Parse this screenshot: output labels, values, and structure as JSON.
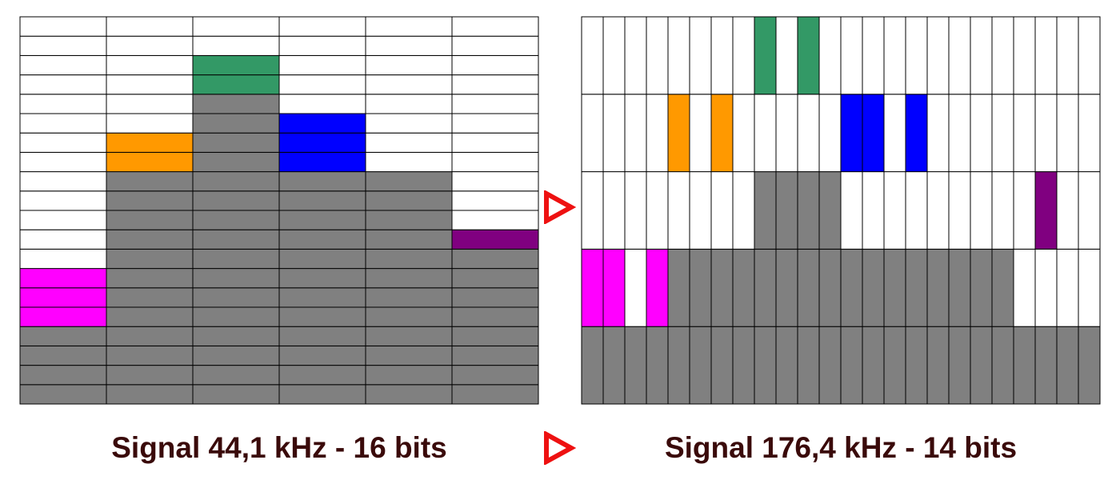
{
  "colors": {
    "background": "#ffffff",
    "grid_line": "#000000",
    "filled": "#808080",
    "arrow": "#ee1111",
    "caption": "#3a0a0a"
  },
  "arrow_icon": "triangle-right-outline-red",
  "left_grid": {
    "caption": "Signal 44,1 kHz - 16 bits",
    "columns": 6,
    "rows": 20,
    "gray_levels": [
      4,
      12,
      16,
      12,
      12,
      8
    ],
    "highlights": [
      {
        "column": 0,
        "from": 4,
        "to": 7,
        "color": "#ff00ff"
      },
      {
        "column": 1,
        "from": 12,
        "to": 14,
        "color": "#ff9900"
      },
      {
        "column": 2,
        "from": 16,
        "to": 18,
        "color": "#339966"
      },
      {
        "column": 3,
        "from": 12,
        "to": 15,
        "color": "#0000ff"
      },
      {
        "column": 5,
        "from": 8,
        "to": 9,
        "color": "#800080"
      }
    ]
  },
  "right_grid": {
    "caption": "Signal 176,4 kHz - 14 bits",
    "columns": 24,
    "rows": 5,
    "gray_levels": [
      1,
      1,
      1,
      1,
      2,
      2,
      2,
      2,
      3,
      3,
      3,
      3,
      2,
      2,
      2,
      2,
      2,
      2,
      2,
      2,
      1,
      1,
      1,
      1
    ],
    "highlights": [
      {
        "column": 0,
        "from": 1,
        "to": 2,
        "color": "#ff00ff"
      },
      {
        "column": 1,
        "from": 1,
        "to": 2,
        "color": "#ff00ff"
      },
      {
        "column": 3,
        "from": 1,
        "to": 2,
        "color": "#ff00ff"
      },
      {
        "column": 4,
        "from": 3,
        "to": 4,
        "color": "#ff9900"
      },
      {
        "column": 6,
        "from": 3,
        "to": 4,
        "color": "#ff9900"
      },
      {
        "column": 8,
        "from": 4,
        "to": 5,
        "color": "#339966"
      },
      {
        "column": 10,
        "from": 4,
        "to": 5,
        "color": "#339966"
      },
      {
        "column": 12,
        "from": 3,
        "to": 4,
        "color": "#0000ff"
      },
      {
        "column": 13,
        "from": 3,
        "to": 4,
        "color": "#0000ff"
      },
      {
        "column": 15,
        "from": 3,
        "to": 4,
        "color": "#0000ff"
      },
      {
        "column": 21,
        "from": 2,
        "to": 3,
        "color": "#800080"
      }
    ]
  }
}
